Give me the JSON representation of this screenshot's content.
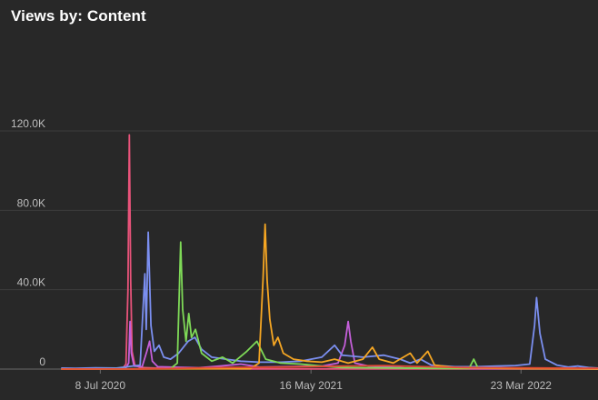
{
  "chart_data": {
    "type": "line",
    "title": "Views by: Content",
    "ylim": [
      0,
      130000
    ],
    "yticks": [
      {
        "value": 0,
        "label": "0"
      },
      {
        "value": 40000,
        "label": "40.0K"
      },
      {
        "value": 80000,
        "label": "80.0K"
      },
      {
        "value": 120000,
        "label": "120.0K"
      }
    ],
    "xlim": [
      "2020-05-12",
      "2022-07-15"
    ],
    "xticks": [
      {
        "value": "2020-07-08",
        "label": "8 Jul 2020"
      },
      {
        "value": "2021-05-16",
        "label": "16 May 2021"
      },
      {
        "value": "2022-03-23",
        "label": "23 Mar 2022"
      }
    ],
    "grid": true,
    "series": [
      {
        "color": "#e8537a",
        "points": [
          [
            "2020-05-12",
            0
          ],
          [
            "2020-08-10",
            300
          ],
          [
            "2020-08-15",
            2500
          ],
          [
            "2020-08-18",
            40000
          ],
          [
            "2020-08-20",
            118000
          ],
          [
            "2020-08-22",
            45000
          ],
          [
            "2020-08-24",
            9000
          ],
          [
            "2020-08-28",
            2000
          ],
          [
            "2020-09-05",
            800
          ],
          [
            "2020-09-20",
            600
          ],
          [
            "2020-10-15",
            300
          ],
          [
            "2020-11-20",
            200
          ],
          [
            "2021-02-01",
            100
          ],
          [
            "2022-07-15",
            100
          ]
        ]
      },
      {
        "color": "#c45fd9",
        "points": [
          [
            "2020-05-12",
            0
          ],
          [
            "2020-08-14",
            200
          ],
          [
            "2020-08-19",
            3000
          ],
          [
            "2020-08-21",
            24000
          ],
          [
            "2020-08-23",
            8000
          ],
          [
            "2020-08-27",
            1500
          ],
          [
            "2020-09-08",
            1200
          ],
          [
            "2020-09-15",
            9000
          ],
          [
            "2020-09-19",
            14000
          ],
          [
            "2020-09-23",
            4000
          ],
          [
            "2020-10-01",
            1200
          ],
          [
            "2020-11-01",
            900
          ],
          [
            "2020-12-01",
            700
          ],
          [
            "2021-01-01",
            1500
          ],
          [
            "2021-02-01",
            2500
          ],
          [
            "2021-03-01",
            1000
          ],
          [
            "2021-06-01",
            1500
          ],
          [
            "2021-06-25",
            3000
          ],
          [
            "2021-07-05",
            12000
          ],
          [
            "2021-07-10",
            24000
          ],
          [
            "2021-07-14",
            14000
          ],
          [
            "2021-07-20",
            3000
          ],
          [
            "2021-08-10",
            1500
          ],
          [
            "2021-10-01",
            600
          ],
          [
            "2022-01-01",
            300
          ],
          [
            "2022-07-15",
            100
          ]
        ]
      },
      {
        "color": "#7b8ff0",
        "points": [
          [
            "2020-05-12",
            500
          ],
          [
            "2020-06-01",
            400
          ],
          [
            "2020-07-01",
            600
          ],
          [
            "2020-08-01",
            500
          ],
          [
            "2020-09-05",
            2000
          ],
          [
            "2020-09-12",
            48000
          ],
          [
            "2020-09-14",
            20000
          ],
          [
            "2020-09-17",
            69000
          ],
          [
            "2020-09-21",
            22000
          ],
          [
            "2020-09-26",
            9000
          ],
          [
            "2020-10-03",
            12000
          ],
          [
            "2020-10-10",
            6000
          ],
          [
            "2020-10-20",
            5000
          ],
          [
            "2020-11-01",
            8000
          ],
          [
            "2020-11-15",
            14000
          ],
          [
            "2020-11-25",
            16000
          ],
          [
            "2020-12-05",
            10000
          ],
          [
            "2020-12-20",
            6000
          ],
          [
            "2021-01-10",
            5000
          ],
          [
            "2021-02-01",
            4000
          ],
          [
            "2021-03-01",
            3500
          ],
          [
            "2021-04-01",
            3500
          ],
          [
            "2021-05-01",
            4000
          ],
          [
            "2021-06-01",
            6000
          ],
          [
            "2021-06-20",
            12000
          ],
          [
            "2021-07-01",
            7000
          ],
          [
            "2021-08-01",
            6000
          ],
          [
            "2021-09-01",
            7000
          ],
          [
            "2021-09-25",
            5000
          ],
          [
            "2021-10-10",
            3000
          ],
          [
            "2021-10-25",
            5000
          ],
          [
            "2021-11-10",
            2000
          ],
          [
            "2021-12-15",
            1200
          ],
          [
            "2022-01-15",
            1200
          ],
          [
            "2022-02-15",
            1500
          ],
          [
            "2022-03-15",
            1800
          ],
          [
            "2022-04-05",
            2500
          ],
          [
            "2022-04-12",
            22000
          ],
          [
            "2022-04-15",
            36000
          ],
          [
            "2022-04-20",
            18000
          ],
          [
            "2022-04-28",
            5000
          ],
          [
            "2022-05-15",
            2000
          ],
          [
            "2022-06-01",
            1000
          ],
          [
            "2022-06-15",
            1500
          ],
          [
            "2022-07-01",
            800
          ],
          [
            "2022-07-15",
            500
          ]
        ]
      },
      {
        "color": "#7ed957",
        "points": [
          [
            "2020-05-12",
            0
          ],
          [
            "2020-10-20",
            200
          ],
          [
            "2020-10-30",
            3000
          ],
          [
            "2020-11-04",
            64000
          ],
          [
            "2020-11-07",
            30000
          ],
          [
            "2020-11-12",
            14000
          ],
          [
            "2020-11-16",
            28000
          ],
          [
            "2020-11-20",
            16000
          ],
          [
            "2020-11-26",
            20000
          ],
          [
            "2020-12-05",
            8000
          ],
          [
            "2020-12-20",
            4000
          ],
          [
            "2021-01-05",
            6000
          ],
          [
            "2021-01-20",
            3000
          ],
          [
            "2021-02-10",
            9000
          ],
          [
            "2021-02-25",
            14000
          ],
          [
            "2021-03-10",
            5000
          ],
          [
            "2021-04-01",
            3000
          ],
          [
            "2021-05-01",
            2500
          ],
          [
            "2021-06-01",
            1500
          ],
          [
            "2021-07-01",
            800
          ],
          [
            "2021-09-01",
            600
          ],
          [
            "2021-12-01",
            300
          ],
          [
            "2022-01-05",
            300
          ],
          [
            "2022-01-12",
            5000
          ],
          [
            "2022-01-18",
            800
          ],
          [
            "2022-03-01",
            400
          ],
          [
            "2022-07-15",
            200
          ]
        ]
      },
      {
        "color": "#f5a623",
        "points": [
          [
            "2020-05-12",
            0
          ],
          [
            "2021-02-15",
            200
          ],
          [
            "2021-02-28",
            3000
          ],
          [
            "2021-03-06",
            45000
          ],
          [
            "2021-03-09",
            73000
          ],
          [
            "2021-03-12",
            45000
          ],
          [
            "2021-03-16",
            25000
          ],
          [
            "2021-03-22",
            12000
          ],
          [
            "2021-03-28",
            16000
          ],
          [
            "2021-04-05",
            8000
          ],
          [
            "2021-04-20",
            5000
          ],
          [
            "2021-05-10",
            4000
          ],
          [
            "2021-06-01",
            3500
          ],
          [
            "2021-06-20",
            5000
          ],
          [
            "2021-07-10",
            3000
          ],
          [
            "2021-08-01",
            5000
          ],
          [
            "2021-08-15",
            11000
          ],
          [
            "2021-08-25",
            5000
          ],
          [
            "2021-09-15",
            3000
          ],
          [
            "2021-10-10",
            8000
          ],
          [
            "2021-10-20",
            3000
          ],
          [
            "2021-11-05",
            9000
          ],
          [
            "2021-11-15",
            2000
          ],
          [
            "2021-12-15",
            800
          ],
          [
            "2022-03-01",
            300
          ],
          [
            "2022-07-15",
            100
          ]
        ]
      },
      {
        "color": "#e24a33",
        "points": [
          [
            "2020-05-12",
            0
          ],
          [
            "2020-09-10",
            100
          ],
          [
            "2020-11-01",
            400
          ],
          [
            "2021-01-01",
            800
          ],
          [
            "2021-04-01",
            1000
          ],
          [
            "2021-07-01",
            1500
          ],
          [
            "2021-09-01",
            1800
          ],
          [
            "2021-11-01",
            1200
          ],
          [
            "2022-01-01",
            800
          ],
          [
            "2022-04-01",
            600
          ],
          [
            "2022-07-15",
            400
          ]
        ]
      }
    ]
  }
}
